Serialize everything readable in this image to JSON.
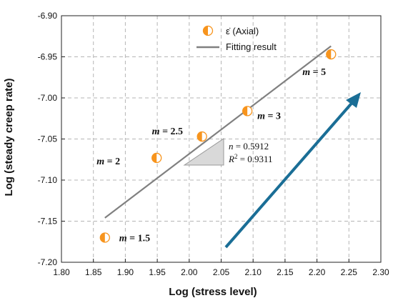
{
  "chart_data": {
    "type": "scatter",
    "xlabel": "Log (stress level)",
    "ylabel": "Log (steady creep rate)",
    "xlim": [
      1.8,
      2.3
    ],
    "ylim": [
      -7.2,
      -6.9
    ],
    "xticks": [
      "1.80",
      "1.85",
      "1.90",
      "1.95",
      "2.00",
      "2.05",
      "2.10",
      "2.15",
      "2.20",
      "2.25",
      "2.30"
    ],
    "yticks": [
      "-6.90",
      "-6.95",
      "-7.00",
      "-7.05",
      "-7.10",
      "-7.15",
      "-7.20"
    ],
    "grid": true,
    "legend_position": "top-center",
    "series": [
      {
        "name": "ε̇ (Axial)",
        "kind": "scatter",
        "color": "#f7941d",
        "x": [
          1.868,
          1.949,
          2.02,
          2.091,
          2.222
        ],
        "y": [
          -7.17,
          -7.073,
          -7.047,
          -7.016,
          -6.947
        ],
        "labels": [
          "1.5",
          "2",
          "2.5",
          "3",
          "5"
        ]
      },
      {
        "name": "Fitting result",
        "kind": "line",
        "color": "#808080",
        "x": [
          1.868,
          2.222
        ],
        "y": [
          -7.146,
          -6.937
        ]
      }
    ],
    "annotations": {
      "m_symbol": "m",
      "eq": " = ",
      "n_line": "n = 0.5912",
      "r_line_prefix": "R",
      "r_line_sup": "2",
      "r_line_suffix": " = 0.9311",
      "arrow_color": "#1a6e96"
    }
  }
}
